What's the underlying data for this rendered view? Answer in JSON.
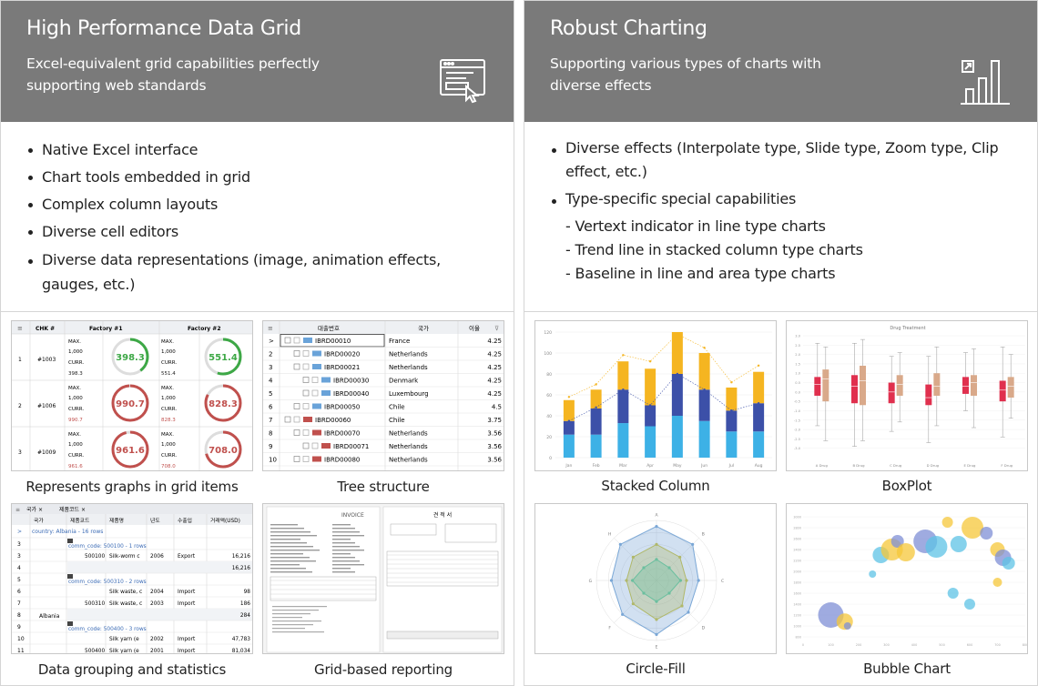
{
  "left": {
    "title": "High Performance Data Grid",
    "subtitle": "Excel-equivalent grid capabilities perfectly supporting web standards",
    "icon": "web-grid-icon",
    "features": [
      "Native Excel interface",
      "Chart tools embedded in grid",
      "Complex column layouts",
      "Diverse cell editors",
      "Diverse data representations (image, animation effects, gauges, etc.)"
    ],
    "tiles": [
      {
        "caption": "Represents graphs in grid items"
      },
      {
        "caption": "Tree structure"
      },
      {
        "caption": "Data grouping and statistics"
      },
      {
        "caption": "Grid-based reporting"
      }
    ]
  },
  "right": {
    "title": "Robust Charting",
    "subtitle": "Supporting various types of charts with diverse effects",
    "icon": "bar-chart-growth-icon",
    "features": [
      {
        "text": "Diverse effects (Interpolate type, Slide type, Zoom type, Clip effect, etc.)",
        "sub": false
      },
      {
        "text": "Type-specific special capabilities",
        "sub": false
      },
      {
        "text": "- Vertext indicator in line type charts",
        "sub": true
      },
      {
        "text": "- Trend line in stacked column type charts",
        "sub": true
      },
      {
        "text": "- Baseline in line and area type charts",
        "sub": true
      }
    ],
    "tiles": [
      {
        "caption": "Stacked Column"
      },
      {
        "caption": "BoxPlot"
      },
      {
        "caption": "Circle-Fill"
      },
      {
        "caption": "Bubble Chart"
      }
    ]
  },
  "gauge_grid": {
    "headers": [
      "CHK #",
      "Factory #1",
      "Factory #2"
    ],
    "rows": [
      {
        "n": "1",
        "id": "#1003",
        "max": "1,000",
        "curr1": "398.3",
        "curr2": "551.4",
        "g1": "398.3",
        "g2": "551.4",
        "ok": true
      },
      {
        "n": "2",
        "id": "#1006",
        "max": "1,000",
        "curr1": "990.7",
        "curr2": "828.3",
        "g1": "990.7",
        "g2": "828.3",
        "ok": false
      },
      {
        "n": "3",
        "id": "#1009",
        "max": "1,000",
        "curr1": "961.6",
        "curr2": "708.0",
        "g1": "961.6",
        "g2": "708.0",
        "ok": false
      }
    ],
    "max_label": "MAX.",
    "curr_label": "CURR."
  },
  "tree_grid": {
    "headers": [
      "대출번호",
      "국가",
      "이율"
    ],
    "rows": [
      {
        "n": "1",
        "code": "IBRD00010",
        "country": "France",
        "rate": "4.25",
        "level": 0,
        "flag": "#6aa3d9"
      },
      {
        "n": "2",
        "code": "IBRD00020",
        "country": "Netherlands",
        "rate": "4.25",
        "level": 1,
        "flag": "#6aa3d9"
      },
      {
        "n": "3",
        "code": "IBRD00021",
        "country": "Netherlands",
        "rate": "4.25",
        "level": 1,
        "flag": "#6aa3d9"
      },
      {
        "n": "4",
        "code": "IBRD00030",
        "country": "Denmark",
        "rate": "4.25",
        "level": 2,
        "flag": "#6aa3d9"
      },
      {
        "n": "5",
        "code": "IBRD00040",
        "country": "Luxembourg",
        "rate": "4.25",
        "level": 2,
        "flag": "#6aa3d9"
      },
      {
        "n": "6",
        "code": "IBRD00050",
        "country": "Chile",
        "rate": "4.5",
        "level": 1,
        "flag": "#6aa3d9"
      },
      {
        "n": "7",
        "code": "IBRD00060",
        "country": "Chile",
        "rate": "3.75",
        "level": 0,
        "flag": "#c0504d"
      },
      {
        "n": "8",
        "code": "IBRD00070",
        "country": "Netherlands",
        "rate": "3.56",
        "level": 1,
        "flag": "#c0504d"
      },
      {
        "n": "9",
        "code": "IBRD00071",
        "country": "Netherlands",
        "rate": "3.56",
        "level": 2,
        "flag": "#c0504d"
      },
      {
        "n": "10",
        "code": "IBRD00080",
        "country": "Netherlands",
        "rate": "3.56",
        "level": 1,
        "flag": "#c0504d"
      }
    ]
  },
  "group_grid": {
    "tabs": [
      "국가",
      "제품코드"
    ],
    "headers": [
      "국가",
      "제품코드",
      "제품명",
      "년도",
      "수출입",
      "거래액(USD)"
    ],
    "country_group": "country: Albania - 16 rows",
    "country": "Albania",
    "rows": [
      {
        "n": "3",
        "kind": "group",
        "text": "comm_code: 500100 - 1 rows"
      },
      {
        "n": "3",
        "kind": "data",
        "code": "500100",
        "name": "Silk-worm c",
        "year": "2006",
        "io": "Export",
        "amt": "16,216"
      },
      {
        "n": "4",
        "kind": "sum",
        "amt": "16,216"
      },
      {
        "n": "5",
        "kind": "group",
        "text": "comm_code: 500310 - 2 rows"
      },
      {
        "n": "6",
        "kind": "data",
        "code": "",
        "name": "Silk waste, c",
        "year": "2004",
        "io": "Import",
        "amt": "98"
      },
      {
        "n": "7",
        "kind": "data",
        "code": "500310",
        "name": "Silk waste, c",
        "year": "2003",
        "io": "Import",
        "amt": "186"
      },
      {
        "n": "8",
        "kind": "sum",
        "amt": "284"
      },
      {
        "n": "9",
        "kind": "group",
        "text": "comm_code: 500400 - 3 rows"
      },
      {
        "n": "10",
        "kind": "data",
        "code": "",
        "name": "Silk yarn (e",
        "year": "2002",
        "io": "Import",
        "amt": "47,783"
      },
      {
        "n": "11",
        "kind": "data",
        "code": "500400",
        "name": "Silk yarn (e",
        "year": "2001",
        "io": "Import",
        "amt": "81,034"
      }
    ]
  },
  "report": {
    "doc1_title": "INVOICE",
    "doc2_title": "견 적 서"
  },
  "stacked_column": {
    "categories": [
      "Jan",
      "Feb",
      "Mar",
      "Apr",
      "May",
      "Jun",
      "Jul",
      "Aug"
    ],
    "series": [
      {
        "color": "#3db1e6",
        "values": [
          22,
          22,
          33,
          30,
          40,
          35,
          25,
          25
        ]
      },
      {
        "color": "#3c50a8",
        "values": [
          13,
          25,
          32,
          20,
          40,
          30,
          20,
          27
        ]
      },
      {
        "color": "#f5b521",
        "values": [
          20,
          18,
          27,
          35,
          40,
          35,
          22,
          30
        ]
      }
    ],
    "trend": [
      {
        "color": "#f5b521",
        "values": [
          58,
          70,
          98,
          92,
          118,
          105,
          72,
          88
        ]
      },
      {
        "color": "#3c50a8",
        "values": [
          35,
          48,
          65,
          50,
          80,
          65,
          45,
          52
        ]
      }
    ],
    "ylim": [
      0,
      120
    ]
  },
  "boxplot": {
    "title": "Drug Treatment",
    "categories": [
      "A Drug",
      "B Drug",
      "C Drug",
      "D Drug",
      "E Drug",
      "F Drug"
    ],
    "colors": [
      "#e0304e",
      "#d9a98a"
    ],
    "ylim": [
      -3.5,
      3
    ]
  },
  "radar": {
    "axes": [
      "A",
      "B",
      "C",
      "D",
      "E",
      "F",
      "G",
      "H"
    ],
    "series": [
      {
        "color": "#7aa7d6",
        "values": [
          0.9,
          0.85,
          0.7,
          0.75,
          0.9,
          0.8,
          0.75,
          0.85
        ]
      },
      {
        "color": "#b0b86a",
        "values": [
          0.6,
          0.55,
          0.5,
          0.6,
          0.65,
          0.55,
          0.5,
          0.55
        ]
      },
      {
        "color": "#6bbf9f",
        "values": [
          0.35,
          0.3,
          0.4,
          0.3,
          0.35,
          0.3,
          0.4,
          0.3
        ]
      }
    ]
  },
  "bubble": {
    "colors": [
      "#7f8fd6",
      "#f5c73a",
      "#5ec3e6"
    ],
    "points": [
      {
        "x": 100,
        "y": 1200,
        "r": 14,
        "c": 0
      },
      {
        "x": 150,
        "y": 1080,
        "r": 9,
        "c": 1
      },
      {
        "x": 160,
        "y": 1000,
        "r": 4,
        "c": 0
      },
      {
        "x": 280,
        "y": 2300,
        "r": 9,
        "c": 2
      },
      {
        "x": 320,
        "y": 2400,
        "r": 12,
        "c": 1
      },
      {
        "x": 340,
        "y": 2550,
        "r": 7,
        "c": 0
      },
      {
        "x": 370,
        "y": 2350,
        "r": 10,
        "c": 1
      },
      {
        "x": 440,
        "y": 2550,
        "r": 13,
        "c": 0
      },
      {
        "x": 480,
        "y": 2450,
        "r": 12,
        "c": 2
      },
      {
        "x": 520,
        "y": 2900,
        "r": 6,
        "c": 1
      },
      {
        "x": 560,
        "y": 2500,
        "r": 9,
        "c": 2
      },
      {
        "x": 610,
        "y": 2800,
        "r": 12,
        "c": 1
      },
      {
        "x": 660,
        "y": 2700,
        "r": 7,
        "c": 0
      },
      {
        "x": 700,
        "y": 2400,
        "r": 8,
        "c": 1
      },
      {
        "x": 720,
        "y": 2250,
        "r": 9,
        "c": 0
      },
      {
        "x": 540,
        "y": 1600,
        "r": 6,
        "c": 2
      },
      {
        "x": 600,
        "y": 1400,
        "r": 6,
        "c": 2
      },
      {
        "x": 700,
        "y": 1800,
        "r": 5,
        "c": 1
      },
      {
        "x": 740,
        "y": 2150,
        "r": 7,
        "c": 2
      },
      {
        "x": 250,
        "y": 1950,
        "r": 4,
        "c": 2
      }
    ]
  }
}
